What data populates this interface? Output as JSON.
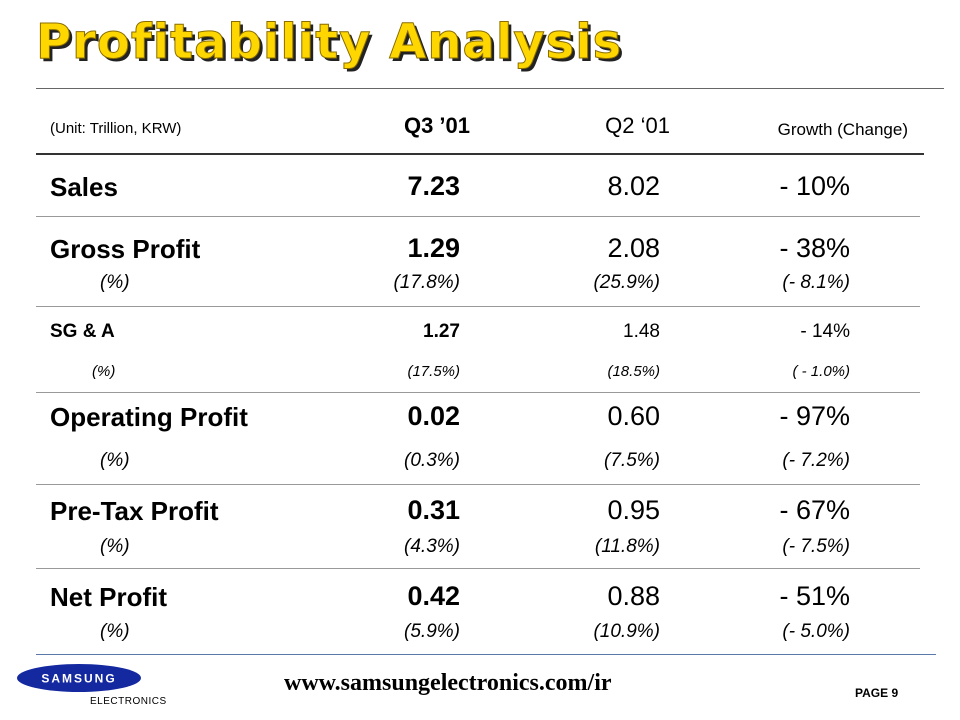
{
  "title": "Profitability Analysis",
  "header": {
    "unit": "(Unit: Trillion, KRW)",
    "col1": "Q3 ’01",
    "col2": "Q2 ‘01",
    "col3": "Growth (Change)"
  },
  "rows": [
    {
      "label": "Sales",
      "q3": "7.23",
      "q2": "8.02",
      "growth": "- 10%"
    },
    {
      "label": "Gross Profit",
      "q3": "1.29",
      "q2": "2.08",
      "growth": "- 38%",
      "pct_label": "(%)",
      "q3_pct": "(17.8%)",
      "q2_pct": "(25.9%)",
      "growth_pct": "(- 8.1%)"
    },
    {
      "label": "SG & A",
      "q3": "1.27",
      "q2": "1.48",
      "growth": "- 14%",
      "pct_label": "(%)",
      "q3_pct": "(17.5%)",
      "q2_pct": "(18.5%)",
      "growth_pct": "( - 1.0%)"
    },
    {
      "label": "Operating Profit",
      "q3": "0.02",
      "q2": "0.60",
      "growth": "- 97%",
      "pct_label": "(%)",
      "q3_pct": "(0.3%)",
      "q2_pct": "(7.5%)",
      "growth_pct": "(- 7.2%)"
    },
    {
      "label": "Pre-Tax Profit",
      "q3": "0.31",
      "q2": "0.95",
      "growth": "- 67%",
      "pct_label": "(%)",
      "q3_pct": "(4.3%)",
      "q2_pct": "(11.8%)",
      "growth_pct": "(- 7.5%)"
    },
    {
      "label": "Net Profit",
      "q3": "0.42",
      "q2": "0.88",
      "growth": "- 51%",
      "pct_label": "(%)",
      "q3_pct": "(5.9%)",
      "q2_pct": "(10.9%)",
      "growth_pct": "(- 5.0%)"
    }
  ],
  "footer": {
    "logo_text": "SAMSUNG",
    "logo_sub": "ELECTRONICS",
    "url": "www.samsungelectronics.com/ir",
    "page": "PAGE 9",
    "logo_color": "#1428a0"
  }
}
